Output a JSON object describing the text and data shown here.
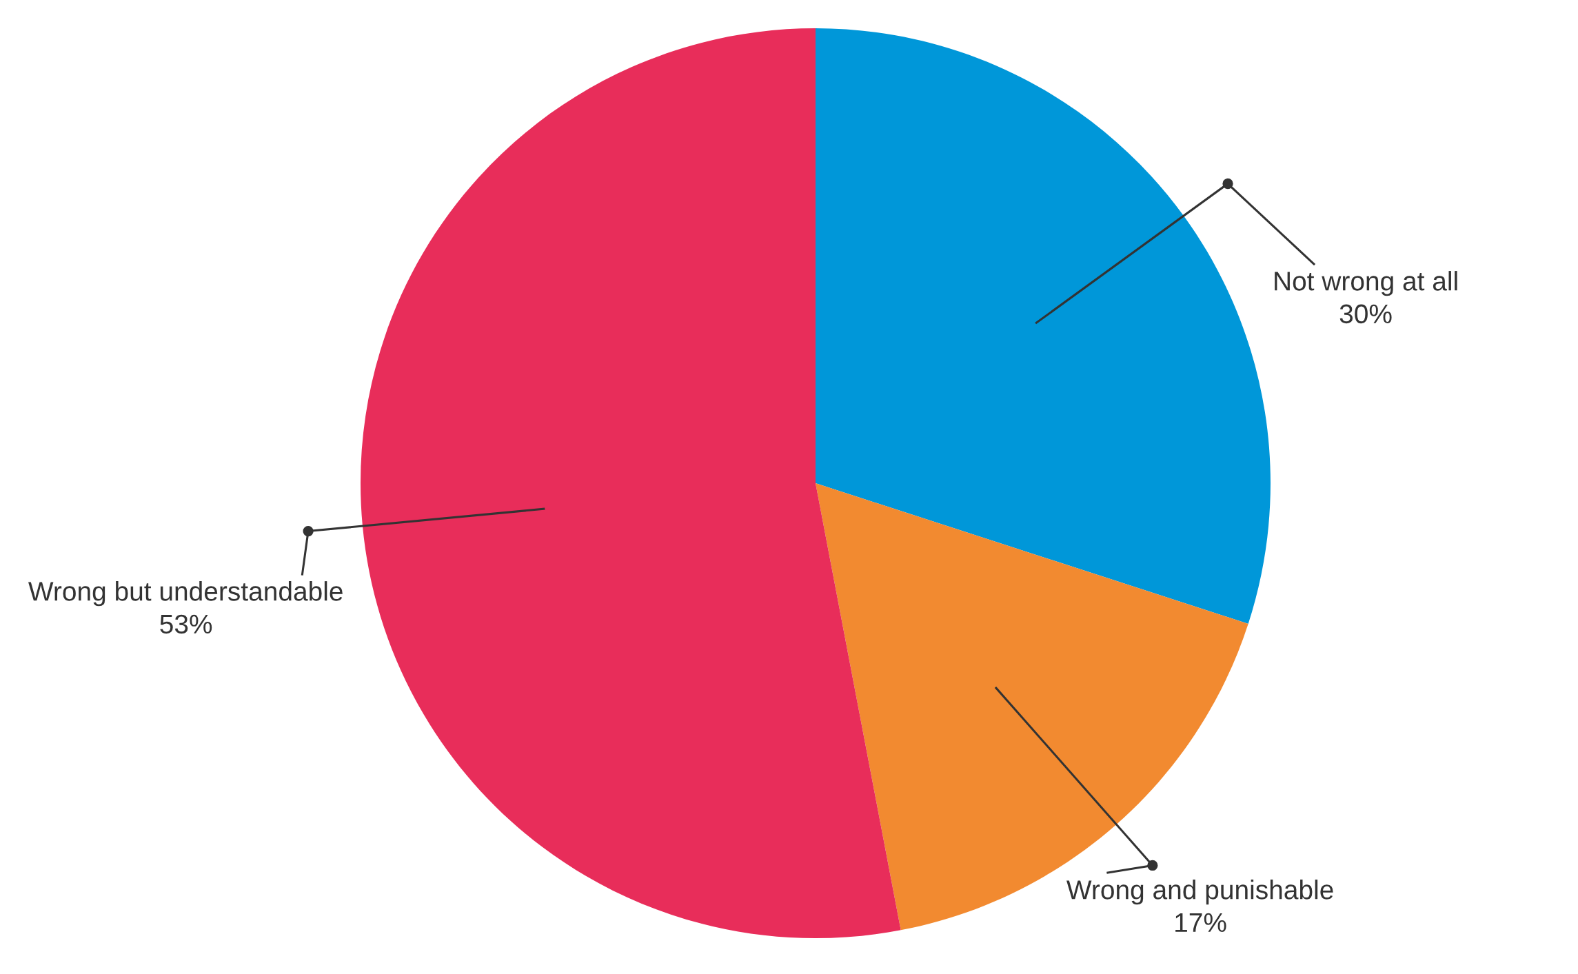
{
  "chart_data": {
    "type": "pie",
    "categories": [
      "Not wrong at all",
      "Wrong and punishable",
      "Wrong but understandable"
    ],
    "values": [
      30,
      17,
      53
    ],
    "colors": [
      "#0097d9",
      "#f28a30",
      "#e82d5a"
    ],
    "value_labels": [
      "30%",
      "17%",
      "53%"
    ]
  }
}
